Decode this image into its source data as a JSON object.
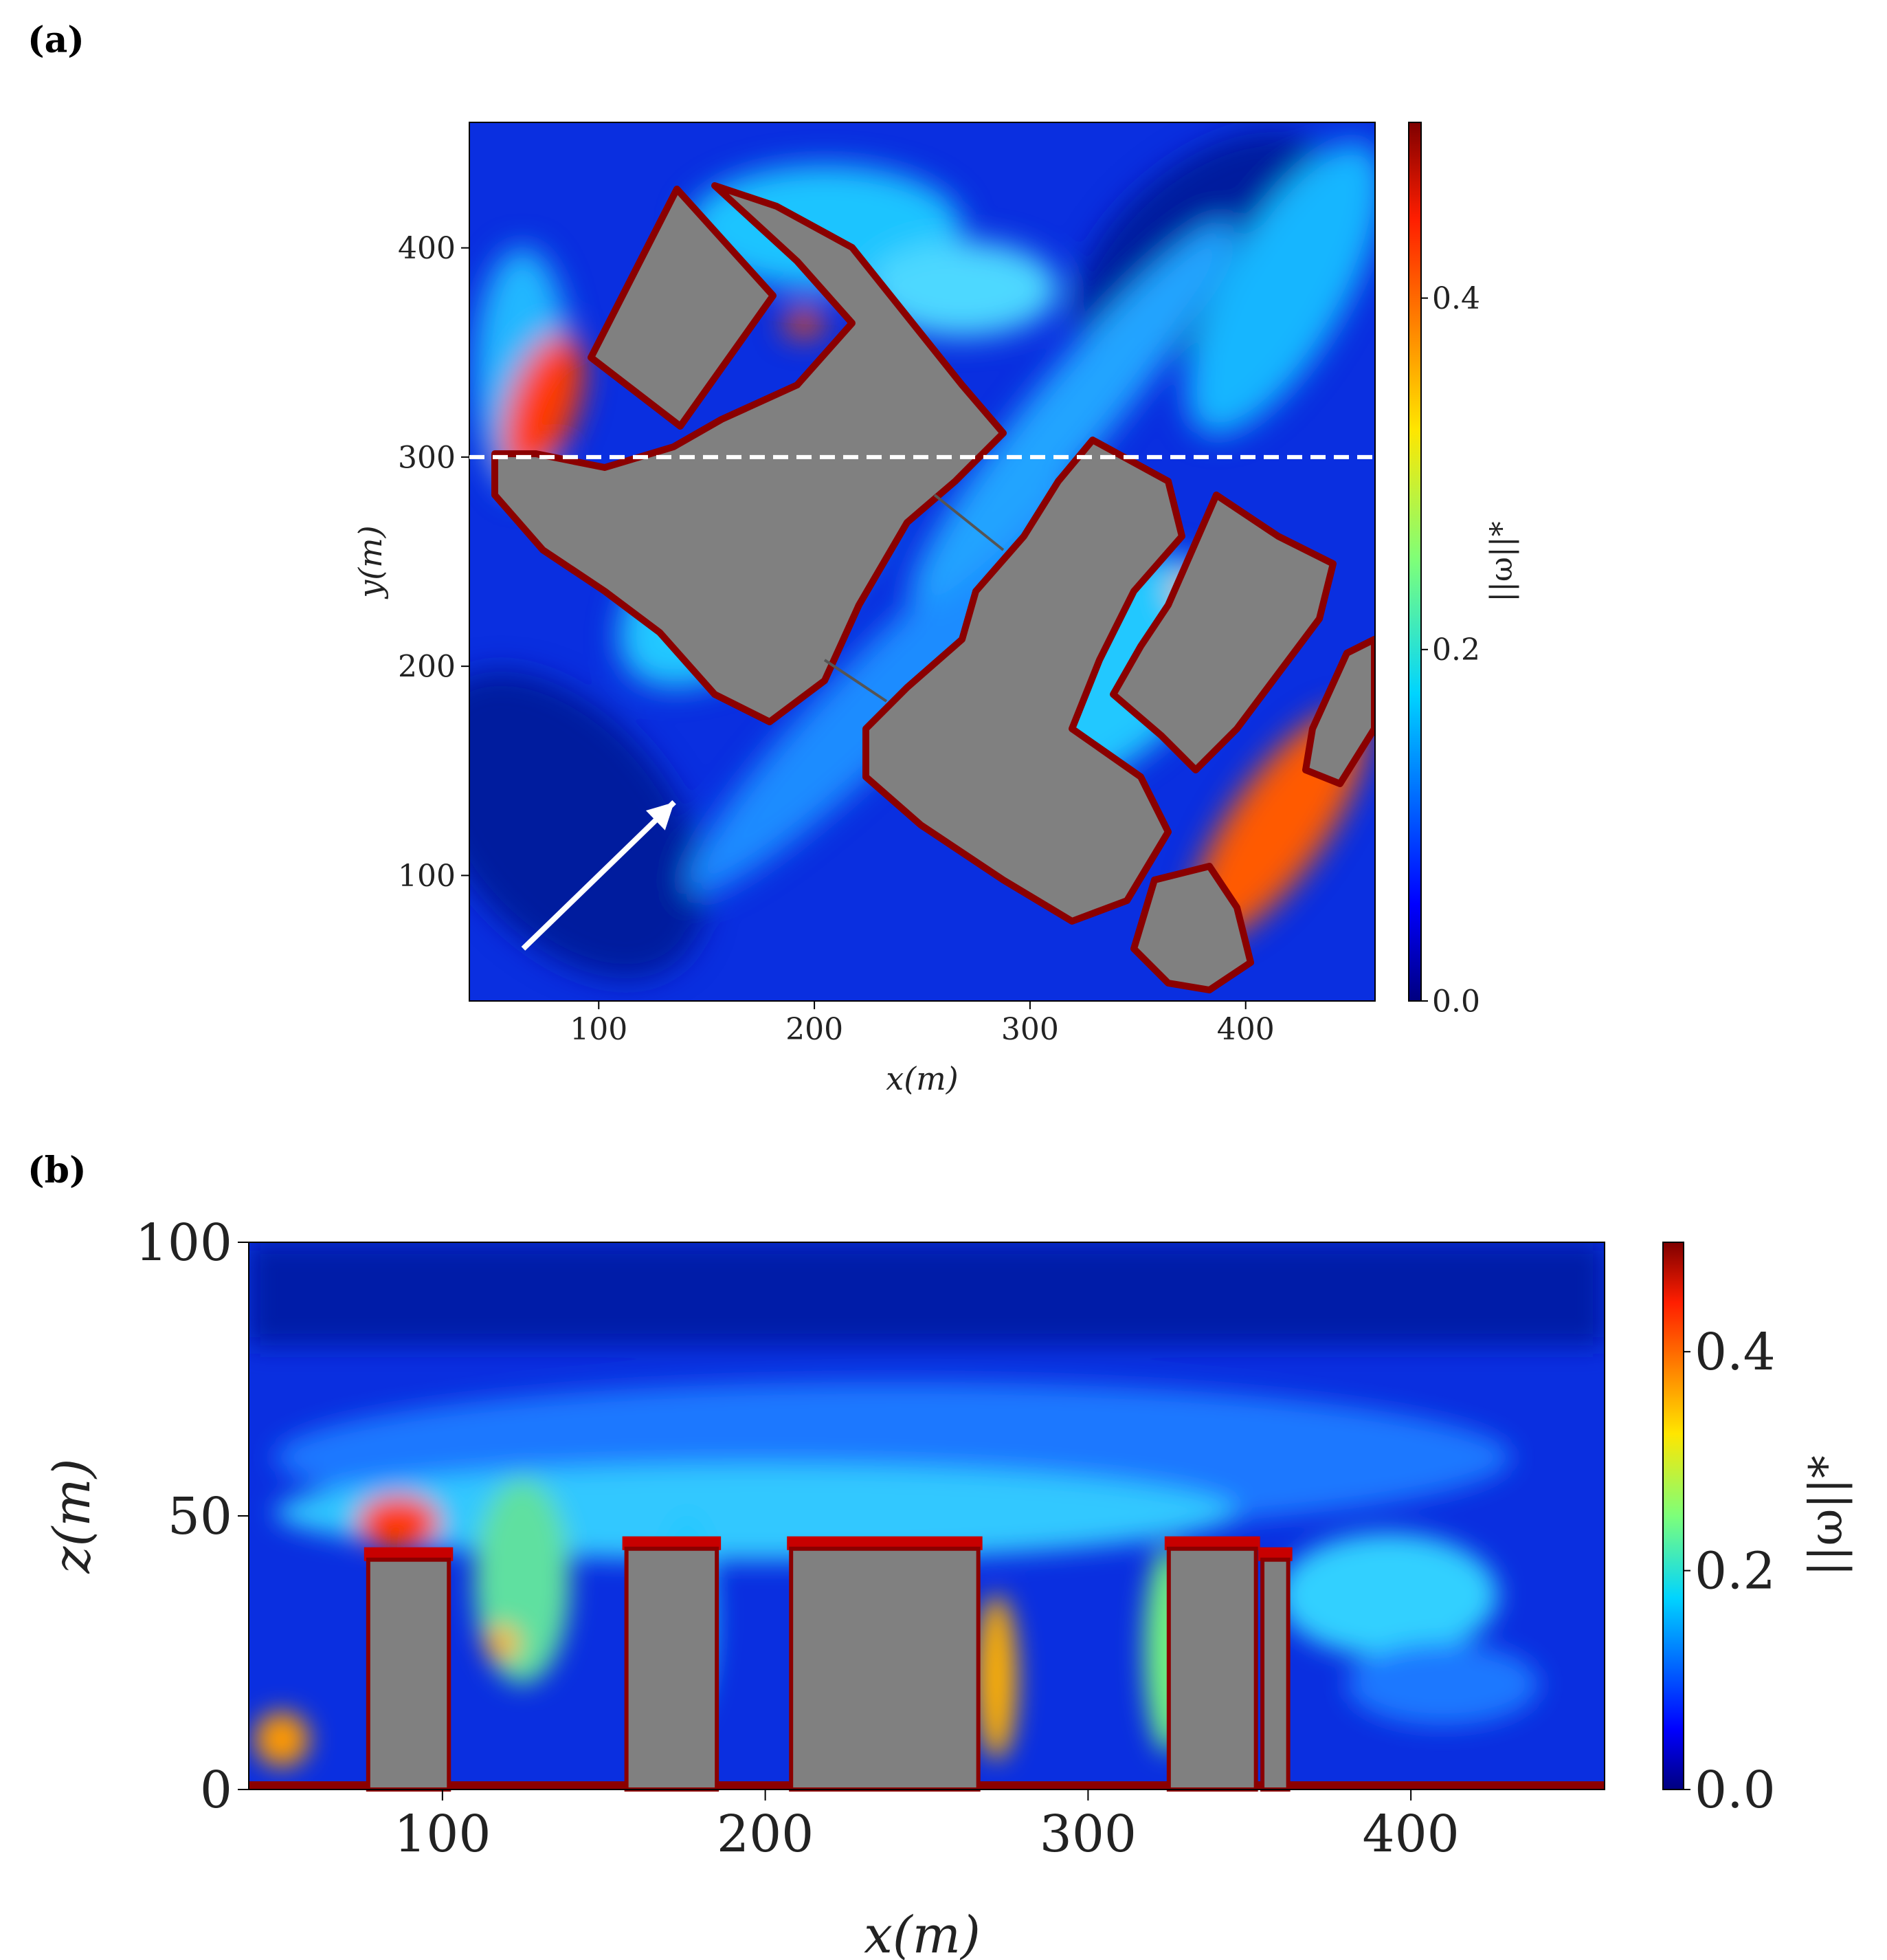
{
  "panels": {
    "a": "(a)",
    "b": "(b)"
  },
  "chart_data": [
    {
      "type": "heatmap",
      "panel": "(a)",
      "title": "",
      "xlabel": "x(m)",
      "ylabel": "y(m)",
      "xlim": [
        40,
        460
      ],
      "ylim": [
        40,
        460
      ],
      "xticks": [
        100,
        200,
        300,
        400
      ],
      "yticks": [
        100,
        200,
        300,
        400
      ],
      "colorbar": {
        "label": "||ω||*",
        "range": [
          0.0,
          0.5
        ],
        "ticks": [
          0.0,
          0.2,
          0.4
        ],
        "colormap": "jet"
      },
      "obstacle_color": "#808080",
      "annotations": [
        {
          "kind": "dashed-line",
          "y": 300,
          "color": "#ffffff"
        },
        {
          "kind": "arrow",
          "from": [
            65,
            65
          ],
          "to": [
            135,
            135
          ],
          "color": "#ffffff",
          "meaning": "wind direction"
        }
      ],
      "grid": false
    },
    {
      "type": "heatmap",
      "panel": "(b)",
      "title": "",
      "xlabel": "x(m)",
      "ylabel": "z(m)",
      "xlim": [
        40,
        460
      ],
      "ylim": [
        0,
        100
      ],
      "xticks": [
        100,
        200,
        300,
        400
      ],
      "yticks": [
        0,
        50,
        100
      ],
      "colorbar": {
        "label": "||ω||*",
        "range": [
          0.0,
          0.5
        ],
        "ticks": [
          0.0,
          0.2,
          0.4
        ],
        "colormap": "jet"
      },
      "buildings": [
        {
          "x0": 77,
          "x1": 102,
          "height": 42
        },
        {
          "x0": 157,
          "x1": 185,
          "height": 44
        },
        {
          "x0": 208,
          "x1": 266,
          "height": 44
        },
        {
          "x0": 325,
          "x1": 352,
          "height": 44
        },
        {
          "x0": 354,
          "x1": 362,
          "height": 42
        }
      ],
      "obstacle_color": "#808080",
      "grid": false
    }
  ]
}
